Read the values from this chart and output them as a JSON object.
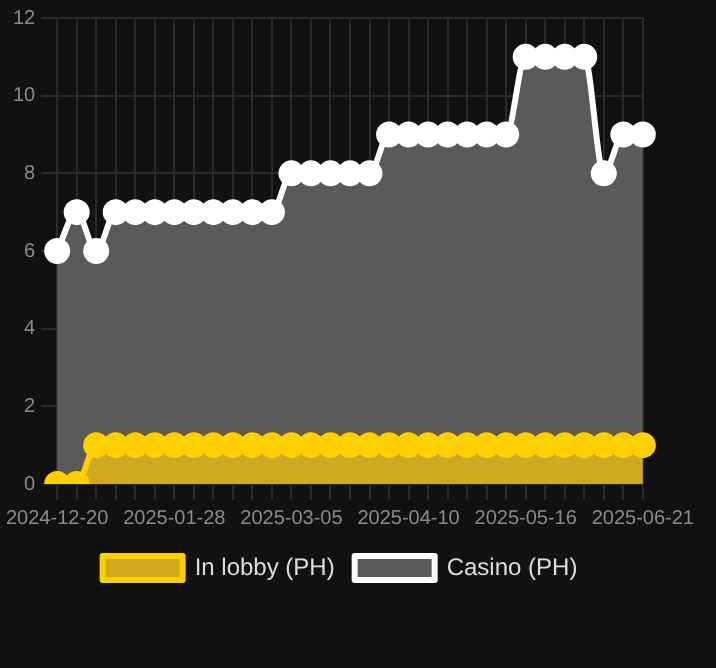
{
  "chart_data": {
    "type": "area",
    "categories": [
      "2024-12-20",
      null,
      null,
      null,
      null,
      null,
      "2025-01-28",
      null,
      null,
      null,
      null,
      null,
      "2025-03-05",
      null,
      null,
      null,
      null,
      null,
      "2025-04-10",
      null,
      null,
      null,
      null,
      null,
      "2025-05-16",
      null,
      null,
      null,
      null,
      null,
      "2025-06-21"
    ],
    "series": [
      {
        "name": "In lobby (PH)",
        "color": "#ffd000",
        "values": [
          0,
          0,
          1,
          1,
          1,
          1,
          1,
          1,
          1,
          1,
          1,
          1,
          1,
          1,
          1,
          1,
          1,
          1,
          1,
          1,
          1,
          1,
          1,
          1,
          1,
          1,
          1,
          1,
          1,
          1,
          1
        ]
      },
      {
        "name": "Casino (PH)",
        "color": "#ffffff",
        "values": [
          6,
          7,
          6,
          7,
          7,
          7,
          7,
          7,
          7,
          7,
          7,
          7,
          8,
          8,
          8,
          8,
          8,
          9,
          9,
          9,
          9,
          9,
          9,
          9,
          11,
          11,
          11,
          11,
          8,
          9,
          9
        ]
      }
    ],
    "ylim": [
      0,
      12
    ],
    "yticks": [
      0,
      2,
      4,
      6,
      8,
      10,
      12
    ],
    "grid": true,
    "legend": "bottom",
    "marker": "circle"
  }
}
